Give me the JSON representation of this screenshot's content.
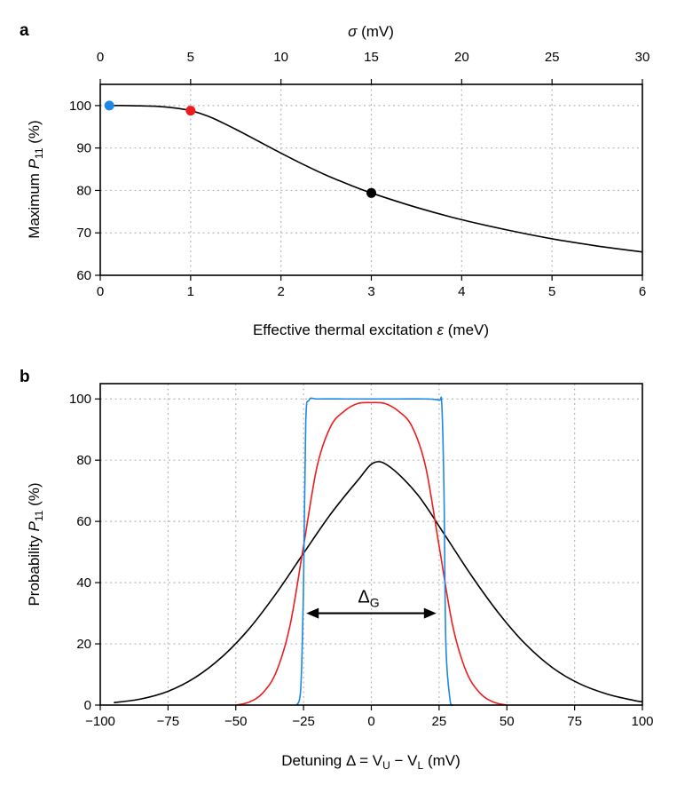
{
  "chart_data": [
    {
      "panel_label": "a",
      "type": "line",
      "title": "",
      "xlabel": "Effective thermal excitation",
      "xlabel_symbol": "ε",
      "xlabel_unit": "(meV)",
      "ylabel": "Maximum",
      "ylabel_symbol": "P",
      "ylabel_subscript": "11",
      "ylabel_unit": "(%)",
      "secondary_xlabel_symbol": "σ",
      "secondary_xlabel_unit": "(mV)",
      "xlim": [
        0,
        6
      ],
      "ylim": [
        60,
        105
      ],
      "secondary_xlim": [
        0,
        30
      ],
      "xticks": [
        0,
        1,
        2,
        3,
        4,
        5,
        6
      ],
      "yticks": [
        60,
        70,
        80,
        90,
        100
      ],
      "secondary_xticks": [
        0,
        5,
        10,
        15,
        20,
        25,
        30
      ],
      "grid": true,
      "series": [
        {
          "name": "Maximum P11 vs ε",
          "color": "#000000",
          "x": [
            0.1,
            0.3,
            0.5,
            0.6,
            0.7,
            0.8,
            0.9,
            1.0,
            1.1,
            1.25,
            1.5,
            1.75,
            2.0,
            2.25,
            2.5,
            2.75,
            3.0,
            3.5,
            4.0,
            4.5,
            5.0,
            5.5,
            6.0
          ],
          "y": [
            100,
            100,
            99.9,
            99.85,
            99.7,
            99.5,
            99.2,
            98.8,
            98.2,
            97.0,
            94.4,
            91.6,
            88.8,
            86.1,
            83.6,
            81.4,
            79.4,
            76.0,
            73.1,
            70.7,
            68.6,
            66.9,
            65.5
          ]
        }
      ],
      "markers": [
        {
          "name": "blue marker",
          "x": 0.1,
          "y": 100,
          "color": "#1e88e5"
        },
        {
          "name": "red marker",
          "x": 1.0,
          "y": 98.8,
          "color": "#ee1c1c"
        },
        {
          "name": "black marker",
          "x": 3.0,
          "y": 79.4,
          "color": "#000000"
        }
      ]
    },
    {
      "panel_label": "b",
      "type": "line",
      "title": "",
      "xlabel": "Detuning",
      "xlabel_equation": "Δ = V",
      "xlabel_sub1": "U",
      "xlabel_minus": " − V",
      "xlabel_sub2": "L",
      "xlabel_unit": "(mV)",
      "ylabel": "Probability",
      "ylabel_symbol": "P",
      "ylabel_subscript": "11",
      "ylabel_unit": "(%)",
      "xlim": [
        -100,
        100
      ],
      "ylim": [
        0,
        105
      ],
      "xticks": [
        -100,
        -75,
        -50,
        -25,
        0,
        25,
        50,
        75,
        100
      ],
      "xtick_labels": [
        "−100",
        "−75",
        "−50",
        "−25",
        "0",
        "25",
        "50",
        "75",
        "100"
      ],
      "yticks": [
        0,
        20,
        40,
        60,
        80,
        100
      ],
      "grid": true,
      "series": [
        {
          "name": "black (ε = 3 meV)",
          "color": "#000000",
          "x": [
            -95,
            -85,
            -75,
            -65,
            -55,
            -45,
            -35,
            -25,
            -15,
            -5,
            1,
            7,
            17,
            27,
            37,
            47,
            57,
            67,
            77,
            87,
            97,
            100
          ],
          "y": [
            0.8,
            2,
            4.5,
            9,
            15.8,
            25,
            36.6,
            49.6,
            62.4,
            73.4,
            79.2,
            77.7,
            68.8,
            55.7,
            42.2,
            30.0,
            19.8,
            12.1,
            6.9,
            3.6,
            1.5,
            1.1
          ]
        },
        {
          "name": "red (ε = 1 meV)",
          "color": "#ee1c1c",
          "x": [
            -50,
            -45,
            -40,
            -35,
            -30,
            -25,
            -20,
            -15,
            -10,
            -5,
            0,
            5,
            10,
            15,
            20,
            25,
            30,
            35,
            40,
            45,
            50
          ],
          "y": [
            0,
            1,
            4,
            11,
            26,
            52,
            78,
            91,
            96,
            98.5,
            98.8,
            98.5,
            96,
            91,
            78,
            52,
            26,
            11,
            4,
            1,
            0
          ]
        },
        {
          "name": "blue (ε = 0.1 meV)",
          "color": "#1e88e5",
          "x": [
            -27.5,
            -26,
            -25,
            -24.2,
            -23,
            -20,
            -10,
            0,
            10,
            20,
            25,
            26,
            26.8,
            27.5,
            29,
            30
          ],
          "y": [
            0,
            6,
            40,
            92,
            99.6,
            100,
            100,
            100,
            100,
            100,
            99.6,
            98,
            70,
            20,
            2,
            0
          ]
        }
      ],
      "annotation": {
        "label": "Δ",
        "subscript": "G",
        "x_start": -24,
        "x_end": 24,
        "y": 30
      }
    }
  ]
}
